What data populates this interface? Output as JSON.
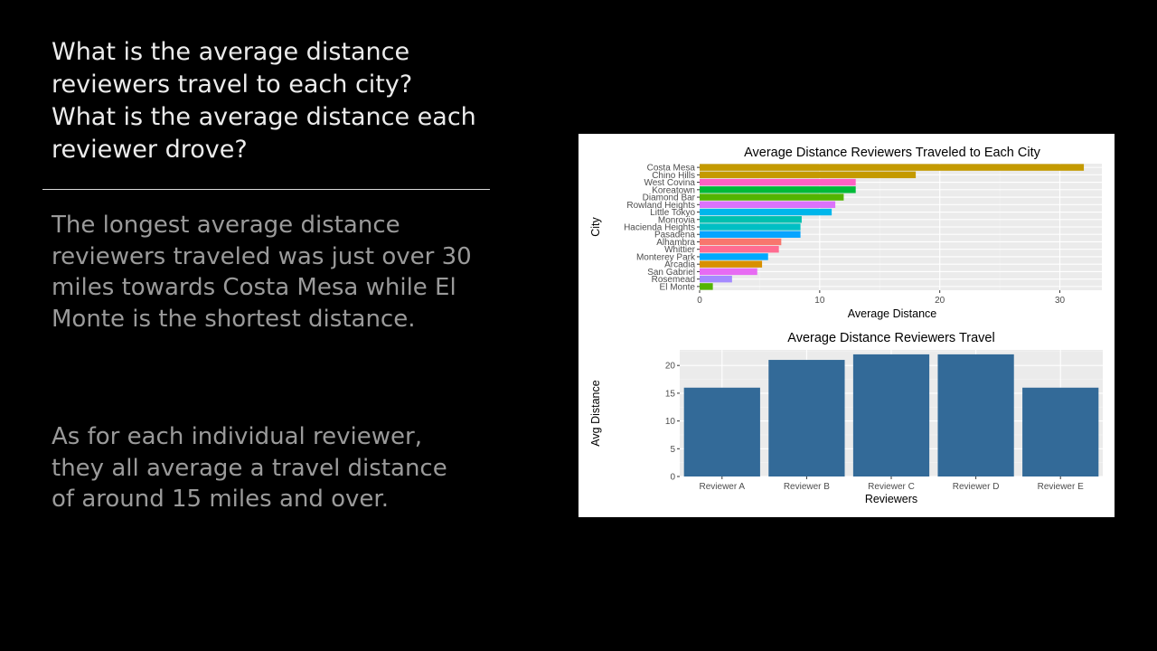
{
  "slide": {
    "heading": "What is the average distance reviewers travel to each city? What is the average distance each reviewer drove?",
    "paragraph1": "The longest average distance reviewers traveled was just over 30 miles towards Costa Mesa while El Monte is the shortest distance.",
    "paragraph2": "As for each individual reviewer, they all average a travel distance of around 15 miles and over."
  },
  "chart_data": [
    {
      "type": "bar",
      "orientation": "horizontal",
      "title": "Average Distance Reviewers Traveled to Each City",
      "xlabel": "Average Distance",
      "ylabel": "City",
      "xlim": [
        0,
        33.5
      ],
      "xticks": [
        "0",
        "10",
        "20",
        "30"
      ],
      "grid": true,
      "legend": "none",
      "categories": [
        "Costa Mesa",
        "Chino Hills",
        "West Covina",
        "Koreatown",
        "Diamond Bar",
        "Rowland Heights",
        "Little Tokyo",
        "Monrovia",
        "Hacienda Heights",
        "Pasadena",
        "Alhambra",
        "Whittier",
        "Monterey Park",
        "Arcadia",
        "San Gabriel",
        "Rosemead",
        "El Monte"
      ],
      "values": [
        32.0,
        18.0,
        13.0,
        13.0,
        12.0,
        11.3,
        11.0,
        8.5,
        8.4,
        8.4,
        6.8,
        6.6,
        5.7,
        5.2,
        4.8,
        2.7,
        1.1
      ],
      "colors": [
        "#C49A00",
        "#C49A00",
        "#FF61C3",
        "#00BA38",
        "#53B400",
        "#DB72FB",
        "#00B6EB",
        "#00C0AF",
        "#00BFC4",
        "#06A4FF",
        "#F8766D",
        "#FF6C91",
        "#00A9FF",
        "#D89000",
        "#E76BF3",
        "#A58AFF",
        "#53B400"
      ]
    },
    {
      "type": "bar",
      "title": "Average Distance Reviewers Travel",
      "xlabel": "Reviewers",
      "ylabel": "Avg Distance",
      "ylim": [
        0,
        22.8
      ],
      "yticks": [
        "0",
        "5",
        "10",
        "15",
        "20"
      ],
      "grid": true,
      "legend": "none",
      "categories": [
        "Reviewer A",
        "Reviewer B",
        "Reviewer C",
        "Reviewer D",
        "Reviewer E"
      ],
      "values": [
        16,
        21,
        22,
        22,
        16
      ],
      "color": "#336A98"
    }
  ]
}
